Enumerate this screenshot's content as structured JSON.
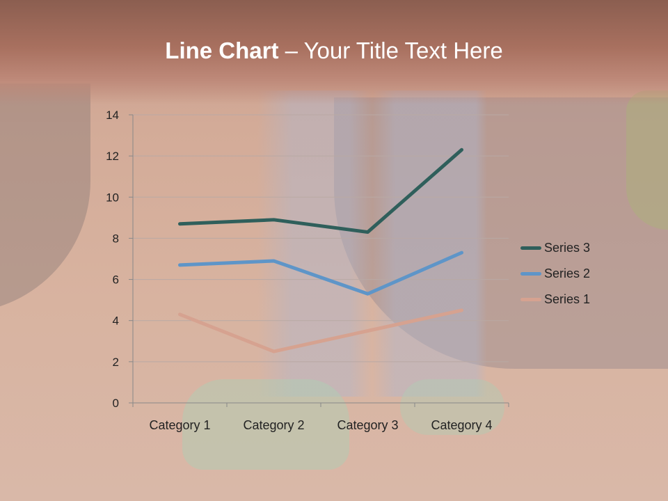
{
  "slide": {
    "title_bold": "Line Chart",
    "title_rest": " – Your Title Text Here"
  },
  "chart_data": {
    "type": "line",
    "stacked": true,
    "categories": [
      "Category 1",
      "Category 2",
      "Category 3",
      "Category 4"
    ],
    "series": [
      {
        "name": "Series 1",
        "values": [
          4.3,
          2.5,
          3.5,
          4.5
        ],
        "color": "#d6a290"
      },
      {
        "name": "Series 2",
        "values": [
          2.4,
          4.4,
          1.8,
          2.8
        ],
        "color": "#5e95c8"
      },
      {
        "name": "Series 3",
        "values": [
          2,
          2,
          3,
          5
        ],
        "color": "#2f5f5b"
      }
    ],
    "ylim": [
      0,
      14
    ],
    "yticks": [
      "0",
      "2",
      "4",
      "6",
      "8",
      "10",
      "12",
      "14"
    ],
    "grid": true,
    "legend": "right"
  }
}
